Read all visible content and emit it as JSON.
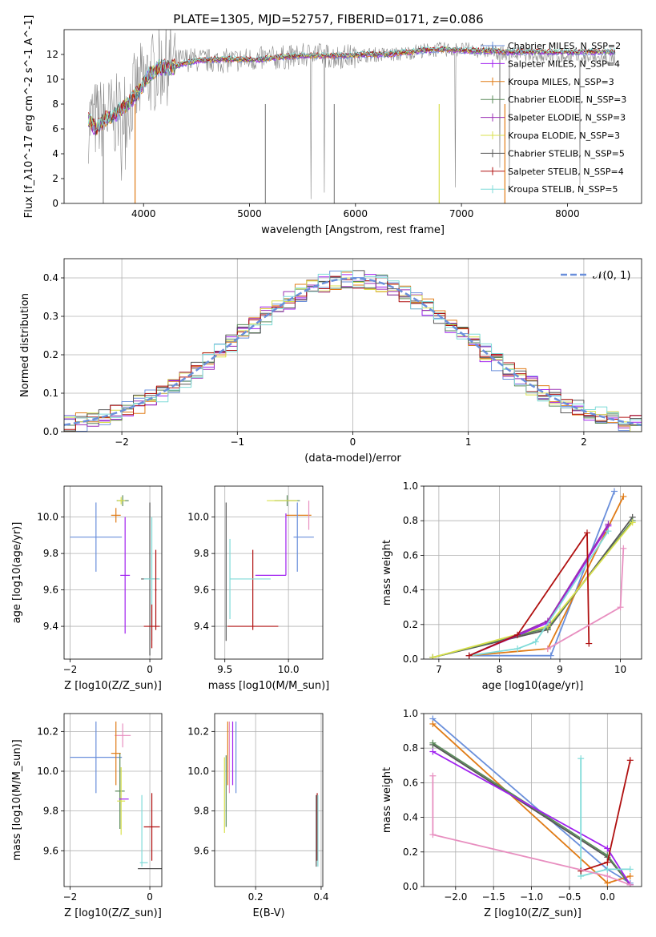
{
  "chart_data": [
    {
      "type": "line",
      "title": "PLATE=1305, MJD=52757, FIBERID=0171, z=0.086",
      "xlabel": "wavelength [Angstrom, rest frame]",
      "ylabel": "Flux [f_λ10^-17 erg cm^-2 s^-1 A^-1]",
      "xlim": [
        3250,
        8700
      ],
      "ylim": [
        0,
        14
      ],
      "xticks": [
        4000,
        5000,
        6000,
        7000,
        8000
      ],
      "yticks": [
        0,
        2,
        4,
        6,
        8,
        10,
        12
      ],
      "legend": "top-right",
      "series": [
        {
          "name": "Chabrier MILES, N_SSP=2",
          "color": "#6a8fdb"
        },
        {
          "name": "Salpeter MILES, N_SSP=4",
          "color": "#a020f0"
        },
        {
          "name": "Kroupa MILES, N_SSP=3",
          "color": "#e07b16"
        },
        {
          "name": "Chabrier ELODIE, N_SSP=3",
          "color": "#5a8a5a"
        },
        {
          "name": "Salpeter ELODIE, N_SSP=3",
          "color": "#9b30b5"
        },
        {
          "name": "Kroupa ELODIE, N_SSP=3",
          "color": "#d9e04c"
        },
        {
          "name": "Chabrier STELIB, N_SSP=5",
          "color": "#555555"
        },
        {
          "name": "Salpeter STELIB, N_SSP=4",
          "color": "#b01010"
        },
        {
          "name": "Kroupa STELIB, N_SSP=5",
          "color": "#7fdbd8"
        }
      ],
      "data_grey": {
        "x": [
          3480,
          3600,
          3800,
          4000,
          4200,
          4400,
          4600,
          4800,
          5000,
          5200,
          5400,
          5600,
          5800,
          6000,
          6200,
          6400,
          6600,
          6800,
          7000,
          7200,
          7400,
          7600,
          7800,
          8000,
          8200,
          8400
        ],
        "y": [
          6.6,
          6.8,
          7.2,
          10.0,
          11.2,
          11.6,
          11.5,
          11.5,
          11.6,
          11.7,
          11.8,
          12.0,
          11.8,
          11.9,
          12.0,
          12.0,
          12.3,
          12.4,
          12.4,
          12.3,
          12.1,
          12.0,
          11.9,
          11.8,
          11.7,
          11.6
        ]
      },
      "model": {
        "x": [
          3480,
          3550,
          3650,
          3750,
          3850,
          3950,
          4050,
          4150,
          4250,
          4350,
          4500,
          4700,
          4900,
          5100,
          5300,
          5500,
          5700,
          5900,
          6100,
          6300,
          6500,
          6700,
          6900,
          7100,
          7300,
          7420
        ],
        "y": [
          6.8,
          6.0,
          6.9,
          7.3,
          8.0,
          9.0,
          10.3,
          11.0,
          10.9,
          11.2,
          11.5,
          11.6,
          11.6,
          11.6,
          11.8,
          11.9,
          11.9,
          11.9,
          12.0,
          12.0,
          12.2,
          12.4,
          12.4,
          12.3,
          12.3,
          12.2
        ]
      }
    },
    {
      "type": "line",
      "xlabel": "(data-model)/error",
      "ylabel": "Normed distribution",
      "xlim": [
        -2.5,
        2.5
      ],
      "ylim": [
        0,
        0.45
      ],
      "xticks": [
        -2,
        -1,
        0,
        1,
        2
      ],
      "yticks": [
        0.0,
        0.1,
        0.2,
        0.3,
        0.4
      ],
      "grid": true,
      "legend": "top-right",
      "normal_label": "𝒩(0, 1)",
      "normal_color": "#6a8fdb",
      "bin_width": 0.1,
      "bin_start": -2.5
    },
    {
      "type": "scatter",
      "xlabel": "Z [log10(Z/Z_sun)]",
      "ylabel": "age [log10(age/yr)]",
      "xlim": [
        -2.15,
        0.3
      ],
      "ylim": [
        9.22,
        10.17
      ],
      "xticks": [
        -2,
        0
      ],
      "yticks": [
        9.4,
        9.6,
        9.8,
        10.0
      ],
      "grid": true,
      "points": [
        {
          "x": -1.35,
          "xerr": 0.65,
          "y": 9.89,
          "yerr": 0.19,
          "color": "#6a8fdb"
        },
        {
          "x": -0.68,
          "xerr": 0.15,
          "y": 10.09,
          "yerr": 0.03,
          "color": "#5a8a5a"
        },
        {
          "x": -0.72,
          "xerr": 0.1,
          "y": 10.09,
          "yerr": 0.02,
          "color": "#d9e04c"
        },
        {
          "x": -0.85,
          "xerr": 0.12,
          "y": 10.01,
          "yerr": 0.04,
          "color": "#e07b16"
        },
        {
          "x": -0.62,
          "xerr": 0.12,
          "y": 9.68,
          "yerr": 0.32,
          "color": "#a020f0"
        },
        {
          "x": 0.0,
          "xerr": 0.22,
          "y": 9.66,
          "yerr": 0.42,
          "color": "#555555"
        },
        {
          "x": 0.05,
          "xerr": 0.2,
          "y": 9.66,
          "yerr": 0.34,
          "color": "#7fdbd8"
        },
        {
          "x": 0.05,
          "xerr": 0.2,
          "y": 9.4,
          "yerr": 0.12,
          "color": "#b01010"
        },
        {
          "x": 0.15,
          "xerr": 0.02,
          "y": 9.6,
          "yerr": 0.22,
          "color": "#b01010"
        }
      ]
    },
    {
      "type": "scatter",
      "xlabel": "mass [log10(M/M_sun)]",
      "xlim": [
        9.42,
        10.27
      ],
      "ylim": [
        9.22,
        10.17
      ],
      "xticks": [
        9.5,
        10.0
      ],
      "yticks": [
        9.4,
        9.6,
        9.8,
        10.0
      ],
      "grid": true,
      "points": [
        {
          "x": 9.51,
          "xerr": 0.0,
          "y": 9.7,
          "yerr": 0.38,
          "color": "#555555"
        },
        {
          "x": 9.54,
          "xerr": 0.0,
          "y": 9.66,
          "yerr": 0.22,
          "color": "#7fdbd8"
        },
        {
          "x": 9.72,
          "xerr": 0.2,
          "y": 9.4,
          "yerr": 0.0,
          "color": "#b01010"
        },
        {
          "x": 9.72,
          "xerr": 0.0,
          "y": 9.6,
          "yerr": 0.22,
          "color": "#b01010"
        },
        {
          "x": 9.7,
          "xerr": 0.16,
          "y": 9.66,
          "yerr": 0.0,
          "color": "#7fdbd8"
        },
        {
          "x": 9.99,
          "xerr": 0.1,
          "y": 10.09,
          "yerr": 0.03,
          "color": "#5a8a5a"
        },
        {
          "x": 9.95,
          "xerr": 0.12,
          "y": 10.09,
          "yerr": 0.0,
          "color": "#d9e04c"
        },
        {
          "x": 10.08,
          "xerr": 0.1,
          "y": 10.01,
          "yerr": 0.0,
          "color": "#e07b16"
        },
        {
          "x": 10.07,
          "xerr": 0.0,
          "y": 9.89,
          "yerr": 0.19,
          "color": "#6a8fdb"
        },
        {
          "x": 10.12,
          "xerr": 0.08,
          "y": 9.89,
          "yerr": 0.0,
          "color": "#6a8fdb"
        },
        {
          "x": 9.86,
          "xerr": 0.12,
          "y": 9.68,
          "yerr": 0.0,
          "color": "#a020f0"
        },
        {
          "x": 9.98,
          "xerr": 0.0,
          "y": 9.85,
          "yerr": 0.17,
          "color": "#a020f0"
        },
        {
          "x": 10.16,
          "xerr": 0.0,
          "y": 10.01,
          "yerr": 0.08,
          "color": "#e88fc0"
        }
      ]
    },
    {
      "type": "line",
      "xlabel": "age [log10(age/yr)]",
      "ylabel": "mass weight",
      "xlim": [
        6.75,
        10.35
      ],
      "ylim": [
        0,
        1.0
      ],
      "xticks": [
        7,
        8,
        9,
        10
      ],
      "yticks": [
        0.0,
        0.2,
        0.4,
        0.6,
        0.8,
        1.0
      ],
      "grid": true,
      "series": [
        {
          "color": "#6a8fdb",
          "x": [
            7.5,
            8.85,
            9.9
          ],
          "y": [
            0.02,
            0.02,
            0.97
          ]
        },
        {
          "color": "#e07b16",
          "x": [
            7.5,
            8.8,
            10.05
          ],
          "y": [
            0.02,
            0.06,
            0.94
          ]
        },
        {
          "color": "#555555",
          "x": [
            6.9,
            8.8,
            10.2
          ],
          "y": [
            0.01,
            0.17,
            0.82
          ]
        },
        {
          "color": "#5a8a5a",
          "x": [
            6.9,
            8.8,
            10.2
          ],
          "y": [
            0.01,
            0.18,
            0.8
          ]
        },
        {
          "color": "#d9e04c",
          "x": [
            6.9,
            8.8,
            10.2
          ],
          "y": [
            0.01,
            0.19,
            0.79
          ]
        },
        {
          "color": "#a020f0",
          "x": [
            7.5,
            8.8,
            9.8
          ],
          "y": [
            0.02,
            0.21,
            0.77
          ]
        },
        {
          "color": "#9b30b5",
          "x": [
            7.5,
            8.8,
            9.8
          ],
          "y": [
            0.02,
            0.22,
            0.78
          ]
        },
        {
          "color": "#7fdbd8",
          "x": [
            7.5,
            8.3,
            8.6,
            9.8
          ],
          "y": [
            0.02,
            0.06,
            0.1,
            0.74
          ]
        },
        {
          "color": "#b01010",
          "x": [
            7.5,
            8.3,
            9.45,
            9.48
          ],
          "y": [
            0.02,
            0.14,
            0.73,
            0.09
          ]
        },
        {
          "color": "#e88fc0",
          "x": [
            8.8,
            10.0,
            10.05
          ],
          "y": [
            0.06,
            0.3,
            0.64
          ]
        }
      ]
    },
    {
      "type": "scatter",
      "xlabel": "Z [log10(Z/Z_sun)]",
      "ylabel": "mass [log10(M/M_sun)]",
      "xlim": [
        -2.15,
        0.3
      ],
      "ylim": [
        9.42,
        10.29
      ],
      "xticks": [
        -2,
        0
      ],
      "yticks": [
        9.6,
        9.8,
        10.0,
        10.2
      ],
      "grid": true,
      "points": [
        {
          "x": -1.35,
          "xerr": 0.65,
          "y": 10.07,
          "yerr": 0.18,
          "color": "#6a8fdb"
        },
        {
          "x": -0.68,
          "xerr": 0.2,
          "y": 10.18,
          "yerr": 0.06,
          "color": "#e88fc0"
        },
        {
          "x": -0.85,
          "xerr": 0.12,
          "y": 10.09,
          "yerr": 0.16,
          "color": "#e07b16"
        },
        {
          "x": -0.75,
          "xerr": 0.12,
          "y": 9.9,
          "yerr": 0.19,
          "color": "#5a8a5a"
        },
        {
          "x": -0.72,
          "xerr": 0.1,
          "y": 9.85,
          "yerr": 0.17,
          "color": "#d9e04c"
        },
        {
          "x": -0.65,
          "xerr": 0.12,
          "y": 9.86,
          "yerr": 0.0,
          "color": "#a020f0"
        },
        {
          "x": -0.2,
          "xerr": 0.0,
          "y": 9.7,
          "yerr": 0.18,
          "color": "#7fdbd8"
        },
        {
          "x": 0.0,
          "xerr": 0.3,
          "y": 9.51,
          "yerr": 0.0,
          "color": "#555555"
        },
        {
          "x": 0.05,
          "xerr": 0.2,
          "y": 9.72,
          "yerr": 0.17,
          "color": "#b01010"
        },
        {
          "x": -0.15,
          "xerr": 0.1,
          "y": 9.54,
          "yerr": 0.0,
          "color": "#7fdbd8"
        }
      ]
    },
    {
      "type": "scatter",
      "xlabel": "E(B-V)",
      "xlim": [
        0.075,
        0.405
      ],
      "ylim": [
        9.42,
        10.29
      ],
      "xticks": [
        0.2,
        0.4
      ],
      "yticks": [
        9.6,
        9.8,
        10.0,
        10.2
      ],
      "grid": true,
      "points": [
        {
          "x": 0.105,
          "y": 9.88,
          "yerr": 0.19,
          "color": "#d9e04c"
        },
        {
          "x": 0.11,
          "y": 9.9,
          "yerr": 0.18,
          "color": "#5a8a5a"
        },
        {
          "x": 0.115,
          "y": 10.09,
          "yerr": 0.16,
          "color": "#e07b16"
        },
        {
          "x": 0.12,
          "y": 10.07,
          "yerr": 0.18,
          "color": "#e88fc0"
        },
        {
          "x": 0.13,
          "y": 10.09,
          "yerr": 0.16,
          "color": "#a020f0"
        },
        {
          "x": 0.14,
          "y": 10.07,
          "yerr": 0.18,
          "color": "#6a8fdb"
        },
        {
          "x": 0.385,
          "y": 9.7,
          "yerr": 0.18,
          "color": "#555555"
        },
        {
          "x": 0.388,
          "y": 9.72,
          "yerr": 0.17,
          "color": "#b01010"
        },
        {
          "x": 0.39,
          "y": 9.7,
          "yerr": 0.18,
          "color": "#7fdbd8"
        }
      ]
    },
    {
      "type": "line",
      "xlabel": "Z [log10(Z/Z_sun)]",
      "ylabel": "mass weight",
      "xlim": [
        -2.42,
        0.45
      ],
      "ylim": [
        0,
        1.0
      ],
      "xticks": [
        -2.0,
        -1.5,
        -1.0,
        -0.5,
        0.0
      ],
      "yticks": [
        0.0,
        0.2,
        0.4,
        0.6,
        0.8,
        1.0
      ],
      "grid": true,
      "series": [
        {
          "color": "#6a8fdb",
          "x": [
            -2.3,
            0.0,
            0.3
          ],
          "y": [
            0.97,
            0.1,
            0.02
          ]
        },
        {
          "color": "#e07b16",
          "x": [
            -2.3,
            0.0,
            0.3
          ],
          "y": [
            0.94,
            0.02,
            0.06
          ]
        },
        {
          "color": "#555555",
          "x": [
            -2.3,
            0.0,
            0.3
          ],
          "y": [
            0.82,
            0.17,
            0.01
          ]
        },
        {
          "color": "#5a8a5a",
          "x": [
            -2.3,
            0.0,
            0.3
          ],
          "y": [
            0.83,
            0.18,
            0.01
          ]
        },
        {
          "color": "#a020f0",
          "x": [
            -2.3,
            0.0,
            0.3
          ],
          "y": [
            0.78,
            0.22,
            0.01
          ]
        },
        {
          "color": "#7fdbd8",
          "x": [
            -0.35,
            -0.35,
            0.0,
            0.3
          ],
          "y": [
            0.74,
            0.06,
            0.1,
            0.1
          ]
        },
        {
          "color": "#b01010",
          "x": [
            -0.35,
            0.0,
            0.3
          ],
          "y": [
            0.09,
            0.14,
            0.73
          ]
        },
        {
          "color": "#e88fc0",
          "x": [
            -2.3,
            -2.3,
            0.0,
            0.3
          ],
          "y": [
            0.64,
            0.3,
            0.06,
            0.01
          ]
        }
      ]
    }
  ]
}
